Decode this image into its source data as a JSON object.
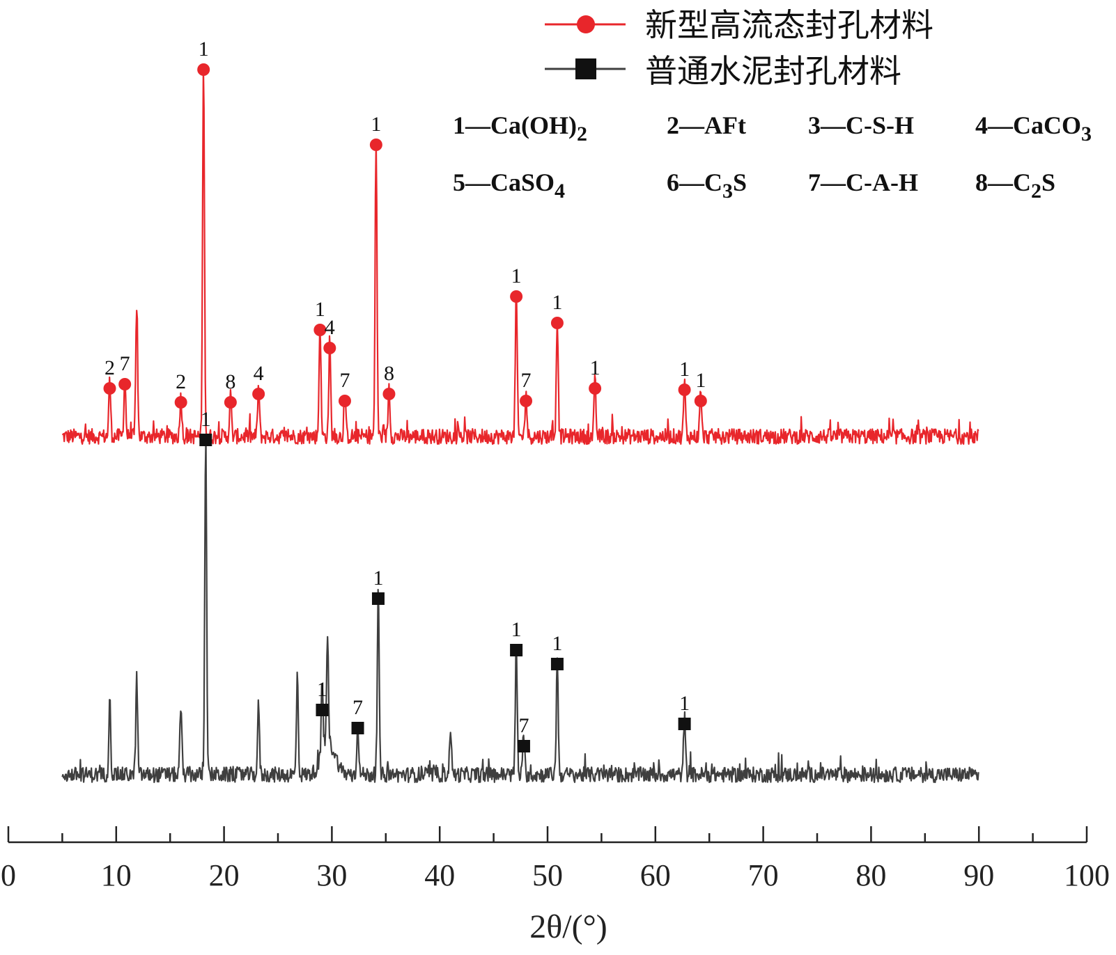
{
  "chart_data": {
    "type": "line",
    "xlabel": "2θ/(°)",
    "xlim": [
      0,
      100
    ],
    "x_ticks": [
      "0",
      "10",
      "20",
      "30",
      "40",
      "50",
      "60",
      "70",
      "80",
      "90",
      "100"
    ],
    "x_range": [
      5,
      90
    ],
    "series": [
      {
        "name": "新型高流态封孔材料",
        "color": "#e8262b",
        "marker": "circle",
        "peaks": [
          {
            "x": 9.4,
            "y": 0.4,
            "label": "2"
          },
          {
            "x": 10.8,
            "y": 0.43,
            "label": "7"
          },
          {
            "x": 11.9,
            "y": 0.95,
            "label": ""
          },
          {
            "x": 16.0,
            "y": 0.3,
            "label": "2"
          },
          {
            "x": 18.1,
            "y": 2.69,
            "label": "1"
          },
          {
            "x": 20.6,
            "y": 0.3,
            "label": "8"
          },
          {
            "x": 23.2,
            "y": 0.36,
            "label": "4"
          },
          {
            "x": 28.9,
            "y": 0.82,
            "label": "1"
          },
          {
            "x": 29.8,
            "y": 0.69,
            "label": "4"
          },
          {
            "x": 31.2,
            "y": 0.31,
            "label": "7"
          },
          {
            "x": 34.1,
            "y": 2.15,
            "label": "1"
          },
          {
            "x": 35.3,
            "y": 0.36,
            "label": "8"
          },
          {
            "x": 47.1,
            "y": 1.06,
            "label": "1"
          },
          {
            "x": 48.0,
            "y": 0.31,
            "label": "7"
          },
          {
            "x": 50.9,
            "y": 0.87,
            "label": "1"
          },
          {
            "x": 54.4,
            "y": 0.4,
            "label": "1"
          },
          {
            "x": 62.7,
            "y": 0.39,
            "label": "1"
          },
          {
            "x": 64.2,
            "y": 0.31,
            "label": "1"
          }
        ]
      },
      {
        "name": "普通水泥封孔材料",
        "color": "#3f3f3f",
        "marker": "square",
        "peaks": [
          {
            "x": 9.4,
            "y": 0.55,
            "label": ""
          },
          {
            "x": 11.9,
            "y": 0.7,
            "label": ""
          },
          {
            "x": 16.0,
            "y": 0.5,
            "label": ""
          },
          {
            "x": 18.3,
            "y": 2.46,
            "label": "1"
          },
          {
            "x": 23.2,
            "y": 0.5,
            "label": ""
          },
          {
            "x": 26.8,
            "y": 0.7,
            "label": ""
          },
          {
            "x": 29.1,
            "y": 0.52,
            "label": "1"
          },
          {
            "x": 29.6,
            "y": 0.77,
            "label": ""
          },
          {
            "x": 32.4,
            "y": 0.39,
            "label": "7"
          },
          {
            "x": 34.3,
            "y": 1.32,
            "label": "1"
          },
          {
            "x": 41.0,
            "y": 0.35,
            "label": ""
          },
          {
            "x": 47.1,
            "y": 0.95,
            "label": "1"
          },
          {
            "x": 47.8,
            "y": 0.26,
            "label": "7"
          },
          {
            "x": 50.9,
            "y": 0.85,
            "label": "1"
          },
          {
            "x": 62.7,
            "y": 0.42,
            "label": "1"
          }
        ]
      }
    ],
    "phase_key": [
      {
        "id": "1",
        "phase": "Ca(OH)",
        "sub": "2"
      },
      {
        "id": "2",
        "phase": "AFt",
        "sub": ""
      },
      {
        "id": "3",
        "phase": "C-S-H",
        "sub": ""
      },
      {
        "id": "4",
        "phase": "CaCO",
        "sub": "3"
      },
      {
        "id": "5",
        "phase": "CaSO",
        "sub": "4"
      },
      {
        "id": "6",
        "phase": "C",
        "sub": "3",
        "tail": "S"
      },
      {
        "id": "7",
        "phase": "C-A-H",
        "sub": ""
      },
      {
        "id": "8",
        "phase": "C",
        "sub": "2",
        "tail": "S"
      }
    ],
    "legend_position": "top-right",
    "grid": false
  }
}
